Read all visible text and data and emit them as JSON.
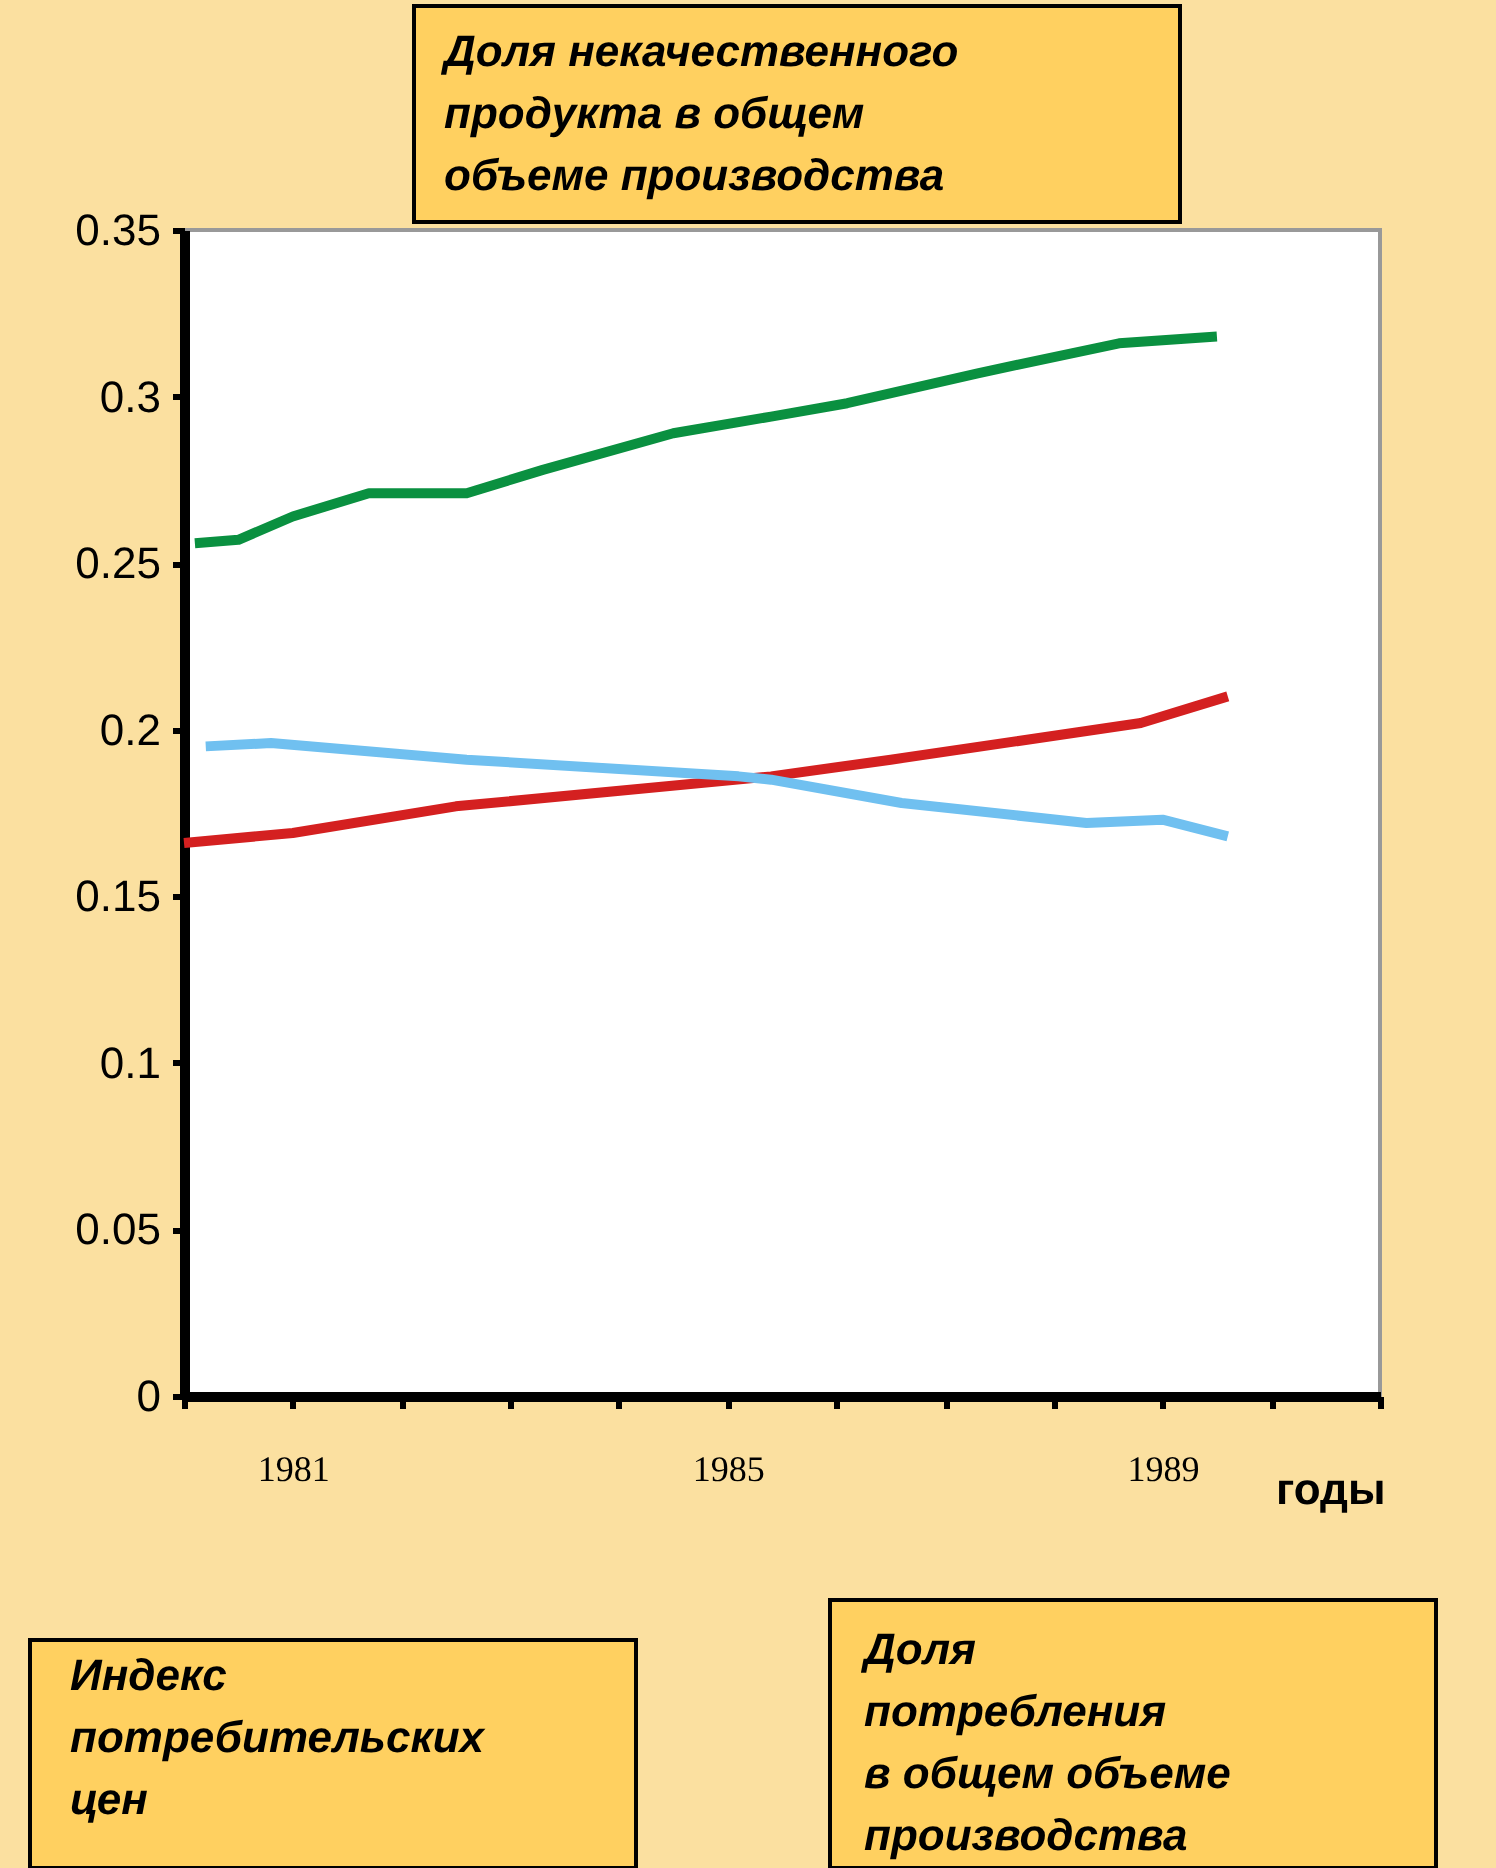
{
  "chart_data": {
    "type": "line",
    "xlabel": "годы",
    "xlim": [
      1980,
      1991
    ],
    "xticks": [
      {
        "value": 1980,
        "label": null
      },
      1981,
      {
        "value": 1982,
        "label": null
      },
      {
        "value": 1983,
        "label": null
      },
      {
        "value": 1984,
        "label": null
      },
      1985,
      {
        "value": 1986,
        "label": null
      },
      {
        "value": 1987,
        "label": null
      },
      {
        "value": 1988,
        "label": null
      },
      1989,
      {
        "value": 1990,
        "label": null
      },
      {
        "value": 1991,
        "label": null
      }
    ],
    "ylim": [
      0,
      0.35
    ],
    "yticks": [
      0,
      0.05,
      0.1,
      0.15,
      0.2,
      0.25,
      0.3,
      0.35
    ],
    "grid": false,
    "line_style": "solid",
    "series": [
      {
        "color": "#0a9040",
        "x": [
          1980.1,
          1980.5,
          1981,
          1981.7,
          1982.6,
          1983.3,
          1984.5,
          1985.4,
          1986.1,
          1987.3,
          1988.6,
          1989.5
        ],
        "values": [
          0.256,
          0.257,
          0.264,
          0.271,
          0.271,
          0.278,
          0.289,
          0.294,
          0.298,
          0.307,
          0.316,
          0.318
        ]
      },
      {
        "color": "#d42020",
        "x": [
          1980,
          1981,
          1982.5,
          1985.4,
          1986.5,
          1988.8,
          1989.6
        ],
        "values": [
          0.166,
          0.169,
          0.177,
          0.186,
          0.191,
          0.202,
          0.21
        ]
      },
      {
        "color": "#70c0f0",
        "x": [
          1980.2,
          1980.8,
          1982.6,
          1985.1,
          1985.4,
          1986.6,
          1988.3,
          1989,
          1989.6
        ],
        "values": [
          0.195,
          0.196,
          0.191,
          0.186,
          0.185,
          0.178,
          0.172,
          0.173,
          0.168
        ]
      }
    ],
    "annotations": [
      "Доля некачественного\nпродукта в общем\nобъеме производства",
      "Индекс\nпотребительских\nцен",
      "Доля\nпотребления\nв общем объеме\nпроизводства"
    ]
  }
}
